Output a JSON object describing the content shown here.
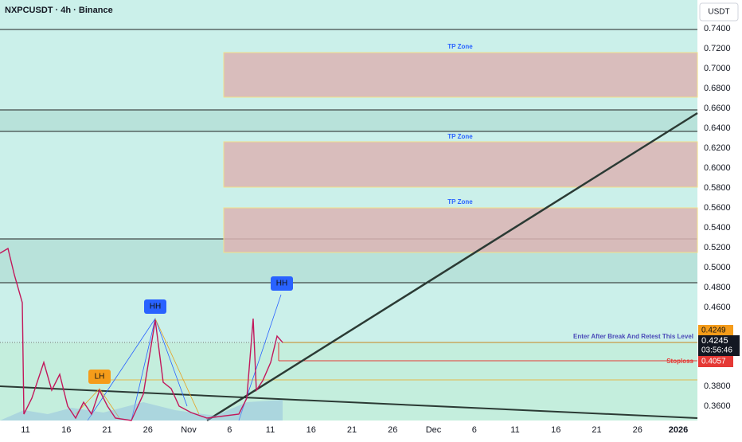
{
  "header": {
    "symbol": "NXPCUSDT · 4h · Binance",
    "currency": "USDT"
  },
  "price_axis": {
    "ticks": [
      "0.7400",
      "0.7200",
      "0.7000",
      "0.6800",
      "0.6600",
      "0.6400",
      "0.6200",
      "0.6000",
      "0.5800",
      "0.5600",
      "0.5400",
      "0.5200",
      "0.5000",
      "0.4800",
      "0.4600",
      "0.3800",
      "0.3600"
    ]
  },
  "time_axis": {
    "labels": [
      "11",
      "16",
      "21",
      "26",
      "Nov",
      "6",
      "11",
      "16",
      "21",
      "26",
      "Dec",
      "6",
      "11",
      "16",
      "21",
      "26",
      "2026"
    ]
  },
  "zones": [
    "TP Zone",
    "TP Zone",
    "TP Zone"
  ],
  "pivots": [
    "HH",
    "HH",
    "LH"
  ],
  "entry": {
    "label": "Enter After Break And Retest This Level",
    "price": "0.4249"
  },
  "last": {
    "price": "0.4245",
    "countdown": "03:56:46"
  },
  "stoploss": {
    "label": "Stoploss",
    "price": "0.4057"
  }
}
